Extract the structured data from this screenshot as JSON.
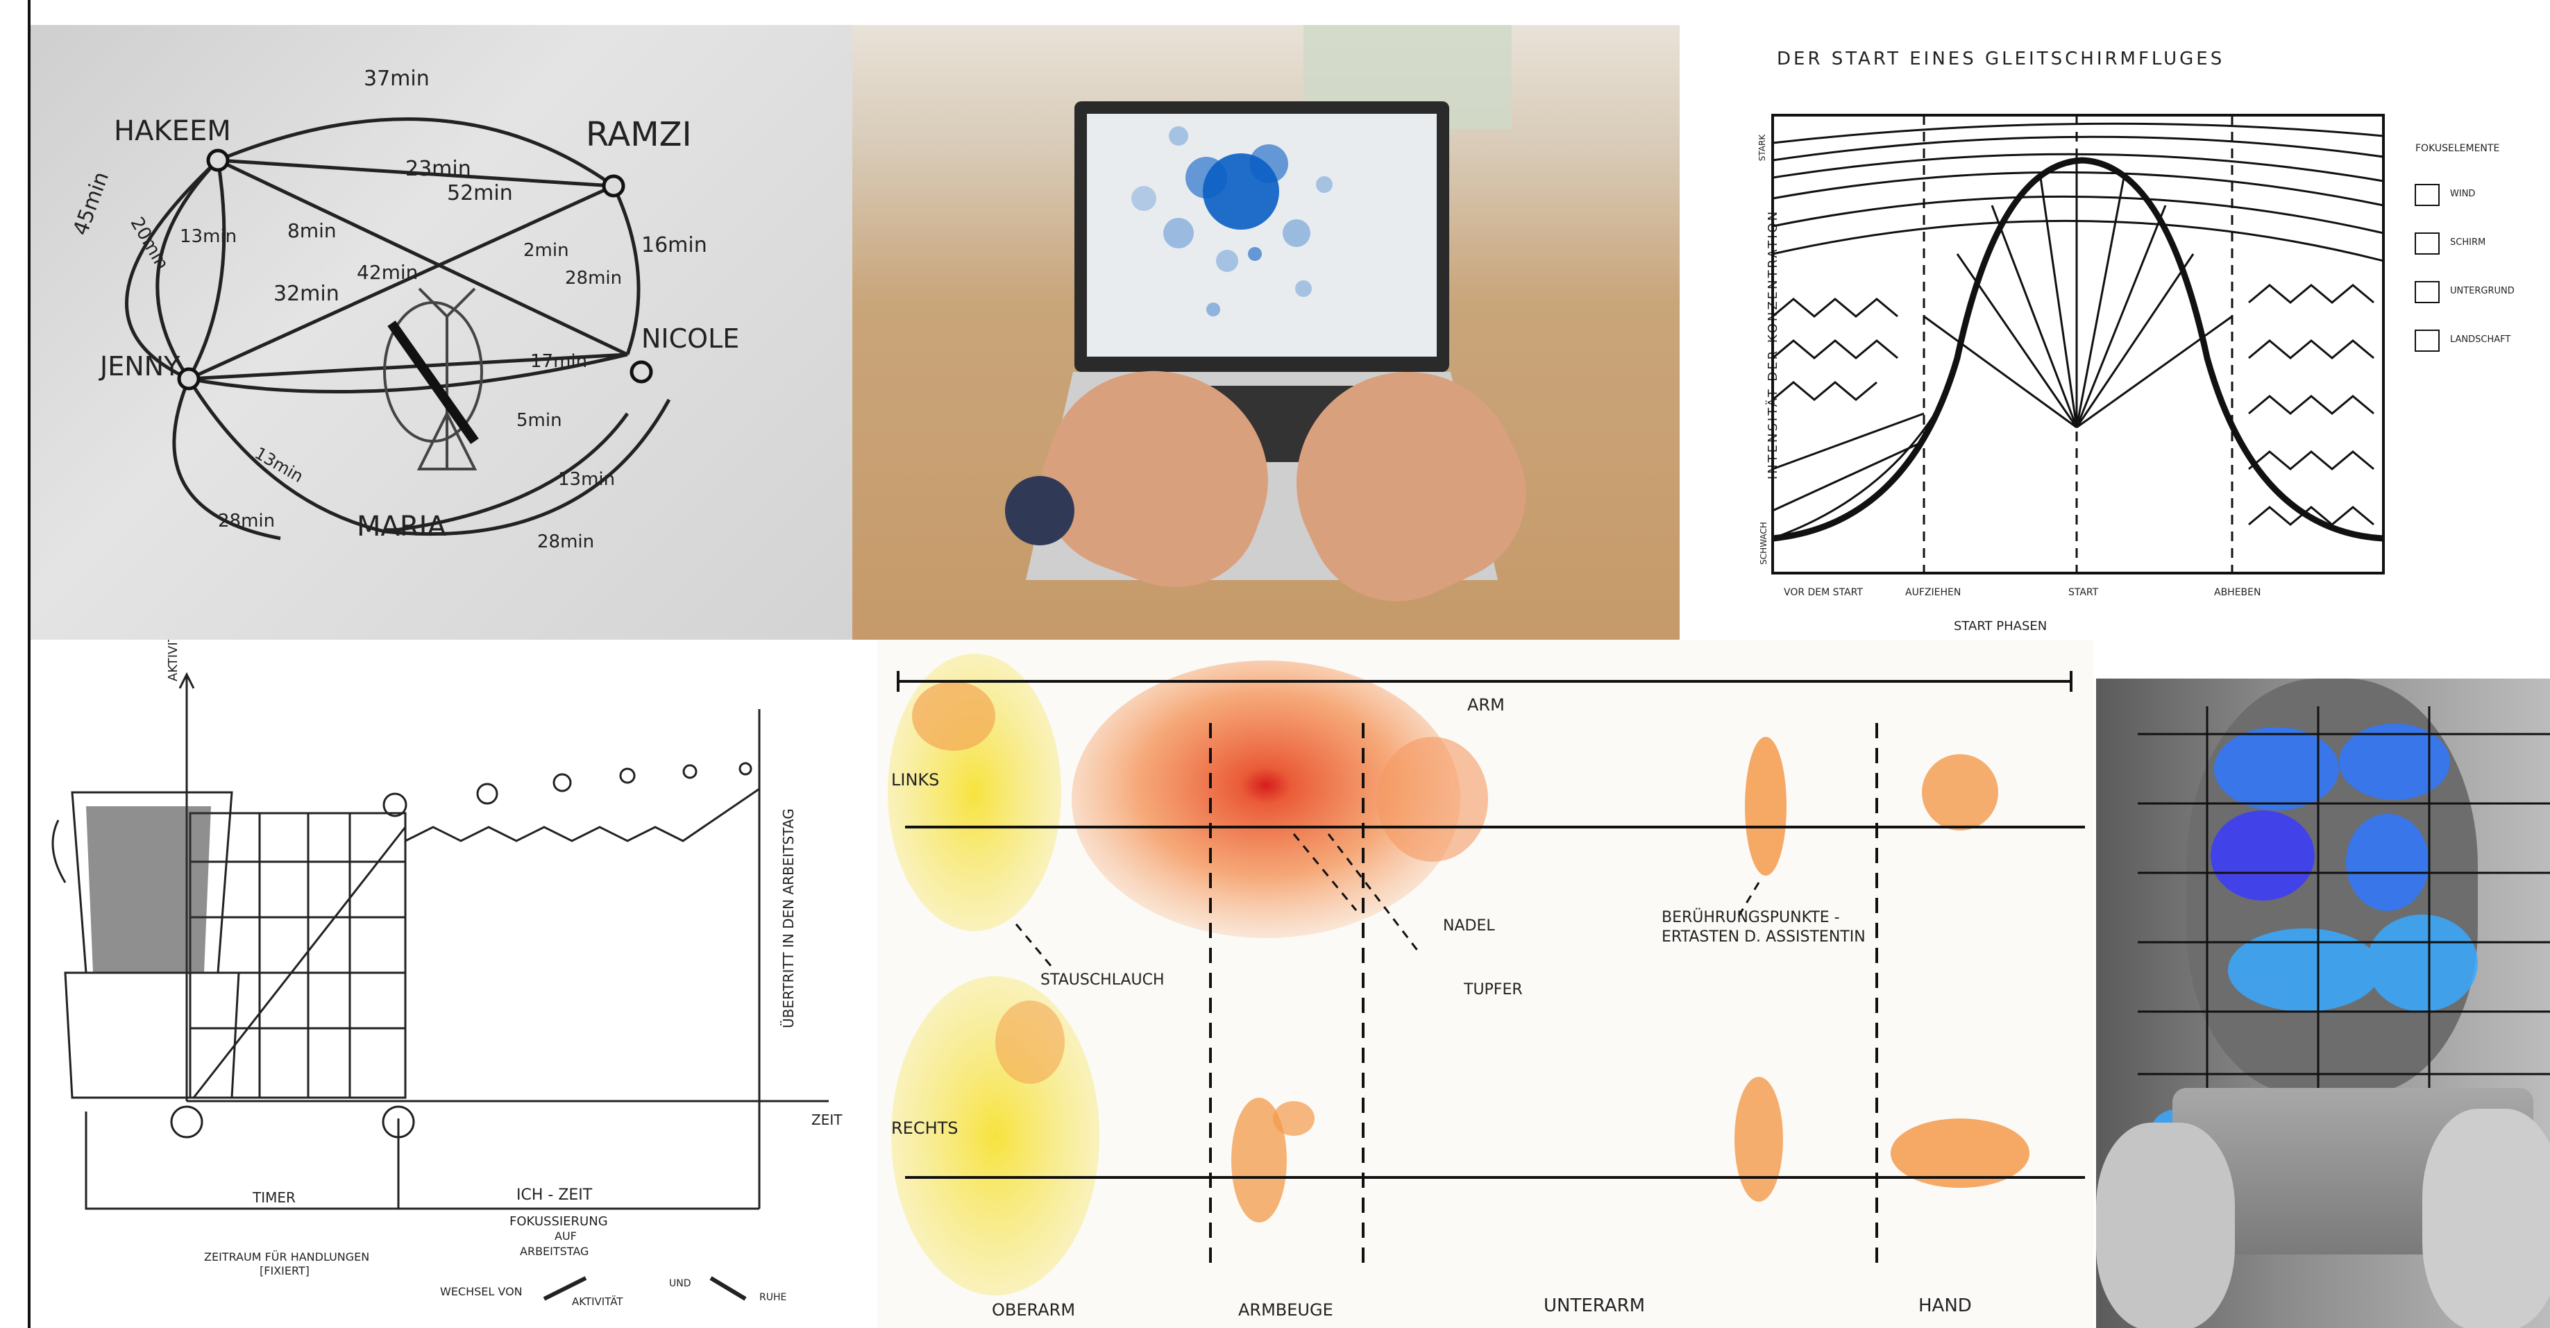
{
  "network": {
    "nodes": [
      "HAKEEM",
      "RAMZI",
      "JENNY",
      "NICOLE",
      "MARIA"
    ],
    "times": [
      "37min",
      "45min",
      "23min",
      "52min",
      "20min",
      "13min",
      "8min",
      "2min",
      "16min",
      "32min",
      "42min",
      "28min",
      "17min",
      "5min",
      "13min",
      "13min",
      "28min",
      "28min"
    ]
  },
  "paragliding": {
    "title": "DER START EINES GLEITSCHIRMFLUGES",
    "ylabel": "INTENSITÄT DER KONZENTRATION",
    "y_high": "STARK",
    "y_low": "SCHWACH",
    "xlabel": "START PHASEN",
    "phases": [
      "VOR DEM START",
      "AUFZIEHEN",
      "START",
      "ABHEBEN"
    ],
    "legend_title": "FOKUSELEMENTE",
    "legend": [
      "WIND",
      "SCHIRM",
      "UNTERGRUND",
      "LANDSCHAFT"
    ]
  },
  "coffee": {
    "y_axis": "AKTIVITÄT",
    "x_axis": "ZEIT",
    "transition": "ÜBERTRITT IN DEN ARBEITSTAG",
    "timer": "TIMER",
    "ich_zeit": "ICH - ZEIT",
    "fokus": [
      "FOKUSSIERUNG",
      "AUF",
      "ARBEITSTAG"
    ],
    "zeitraum": [
      "ZEITRAUM FÜR HANDLUNGEN",
      "[FIXIERT]"
    ],
    "wechsel": [
      "WECHSEL VON",
      "AKTIVITÄT",
      "UND",
      "RUHE"
    ]
  },
  "arm": {
    "title": "ARM",
    "rows": [
      "LINKS",
      "RECHTS"
    ],
    "annotations": [
      "STAUSCHLAUCH",
      "NADEL",
      "TUPFER",
      "BERÜHRUNGSPUNKTE -",
      "ERTASTEN D. ASSISTENTIN"
    ],
    "sections": [
      "OBERARM",
      "ARMBEUGE",
      "UNTERARM",
      "HAND"
    ]
  },
  "colors": {
    "ink": "#222222",
    "heat_blue": "#0a5fc4",
    "watercolor_orange": "#f08a3c",
    "watercolor_yellow": "#f4de3a"
  }
}
